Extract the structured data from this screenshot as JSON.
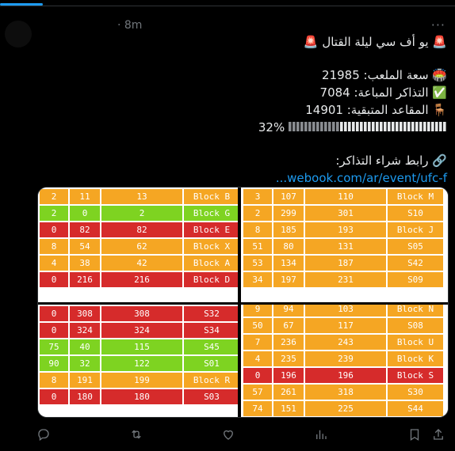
{
  "tweet": {
    "time": "· 8m",
    "more": "···",
    "line1": "🚨 يو أف سي ليلة القتال 🚨",
    "line2": "🏟️ سعة الملعب: 21985",
    "line3": "✅ التذاكر المباعة: 7084",
    "line4": "🪑 المقاعد المتبقية: 14901",
    "progress_text": "32%",
    "progress_value": 32,
    "line6": "🔗 رابط شراء التذاكر:",
    "link": "webook.com/ar/event/ufc-f..."
  },
  "tables": {
    "q1": [
      {
        "a": "2",
        "b": "11",
        "c": "13",
        "d": "Block B",
        "ca": "orange",
        "cb": "orange",
        "cc": "orange",
        "cd": "orange"
      },
      {
        "a": "2",
        "b": "0",
        "c": "2",
        "d": "Block G",
        "ca": "green",
        "cb": "green",
        "cc": "green",
        "cd": "green"
      },
      {
        "a": "0",
        "b": "82",
        "c": "82",
        "d": "Block E",
        "ca": "red",
        "cb": "red",
        "cc": "red",
        "cd": "red"
      },
      {
        "a": "8",
        "b": "54",
        "c": "62",
        "d": "Block X",
        "ca": "orange",
        "cb": "orange",
        "cc": "orange",
        "cd": "orange"
      },
      {
        "a": "4",
        "b": "38",
        "c": "42",
        "d": "Block A",
        "ca": "orange",
        "cb": "orange",
        "cc": "orange",
        "cd": "orange"
      },
      {
        "a": "0",
        "b": "216",
        "c": "216",
        "d": "Block D",
        "ca": "red",
        "cb": "red",
        "cc": "red",
        "cd": "red"
      }
    ],
    "q2": [
      {
        "a": "3",
        "b": "107",
        "c": "110",
        "d": "Block M",
        "ca": "orange",
        "cb": "orange",
        "cc": "orange",
        "cd": "orange"
      },
      {
        "a": "2",
        "b": "299",
        "c": "301",
        "d": "S10",
        "ca": "orange",
        "cb": "orange",
        "cc": "orange",
        "cd": "orange"
      },
      {
        "a": "8",
        "b": "185",
        "c": "193",
        "d": "Block J",
        "ca": "orange",
        "cb": "orange",
        "cc": "orange",
        "cd": "orange"
      },
      {
        "a": "51",
        "b": "80",
        "c": "131",
        "d": "S05",
        "ca": "orange",
        "cb": "orange",
        "cc": "orange",
        "cd": "orange"
      },
      {
        "a": "53",
        "b": "134",
        "c": "187",
        "d": "S42",
        "ca": "orange",
        "cb": "orange",
        "cc": "orange",
        "cd": "orange"
      },
      {
        "a": "34",
        "b": "197",
        "c": "231",
        "d": "S09",
        "ca": "orange",
        "cb": "orange",
        "cc": "orange",
        "cd": "orange"
      }
    ],
    "q3": [
      {
        "a": "0",
        "b": "308",
        "c": "308",
        "d": "S32",
        "ca": "red",
        "cb": "red",
        "cc": "red",
        "cd": "red"
      },
      {
        "a": "0",
        "b": "324",
        "c": "324",
        "d": "S34",
        "ca": "red",
        "cb": "red",
        "cc": "red",
        "cd": "red"
      },
      {
        "a": "75",
        "b": "40",
        "c": "115",
        "d": "S45",
        "ca": "green",
        "cb": "green",
        "cc": "green",
        "cd": "green"
      },
      {
        "a": "90",
        "b": "32",
        "c": "122",
        "d": "S01",
        "ca": "green",
        "cb": "green",
        "cc": "green",
        "cd": "green"
      },
      {
        "a": "8",
        "b": "191",
        "c": "199",
        "d": "Block R",
        "ca": "orange",
        "cb": "orange",
        "cc": "orange",
        "cd": "orange"
      },
      {
        "a": "0",
        "b": "180",
        "c": "180",
        "d": "S03",
        "ca": "red",
        "cb": "red",
        "cc": "red",
        "cd": "red"
      }
    ],
    "q4": [
      {
        "a": "9",
        "b": "94",
        "c": "103",
        "d": "Block N",
        "ca": "orange",
        "cb": "orange",
        "cc": "orange",
        "cd": "orange"
      },
      {
        "a": "50",
        "b": "67",
        "c": "117",
        "d": "S08",
        "ca": "orange",
        "cb": "orange",
        "cc": "orange",
        "cd": "orange"
      },
      {
        "a": "7",
        "b": "236",
        "c": "243",
        "d": "Block U",
        "ca": "orange",
        "cb": "orange",
        "cc": "orange",
        "cd": "orange"
      },
      {
        "a": "4",
        "b": "235",
        "c": "239",
        "d": "Block K",
        "ca": "orange",
        "cb": "orange",
        "cc": "orange",
        "cd": "orange"
      },
      {
        "a": "0",
        "b": "196",
        "c": "196",
        "d": "Block S",
        "ca": "red",
        "cb": "red",
        "cc": "red",
        "cd": "red"
      },
      {
        "a": "57",
        "b": "261",
        "c": "318",
        "d": "S30",
        "ca": "orange",
        "cb": "orange",
        "cc": "orange",
        "cd": "orange"
      },
      {
        "a": "74",
        "b": "151",
        "c": "225",
        "d": "S44",
        "ca": "orange",
        "cb": "orange",
        "cc": "orange",
        "cd": "orange"
      }
    ]
  },
  "colors": {
    "accent": "#1d9bf0",
    "orange": "#f5a623",
    "red": "#d62b2b",
    "green": "#7ed321",
    "icon": "#71767b"
  },
  "actions": [
    {
      "name": "reply-icon"
    },
    {
      "name": "retweet-icon"
    },
    {
      "name": "like-icon"
    },
    {
      "name": "views-icon"
    },
    {
      "name": "bookmark-icon"
    },
    {
      "name": "share-icon"
    }
  ]
}
